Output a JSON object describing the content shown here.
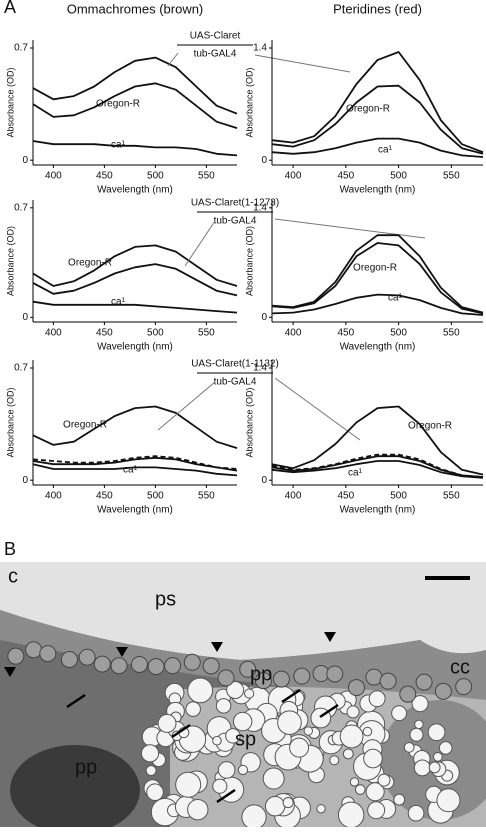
{
  "panel_labels": [
    "A",
    "B"
  ],
  "chart_data": [
    {
      "type": "line",
      "title": "Ommachromes (brown)",
      "xlabel": "Wavelength (nm)",
      "ylabel": "Absorbance (OD)",
      "driver": "tub-GAL4",
      "x": [
        380,
        400,
        420,
        440,
        460,
        480,
        500,
        520,
        540,
        560,
        580
      ],
      "xlim": [
        380,
        580
      ],
      "xticks": [
        400,
        450,
        500,
        550
      ],
      "ylim": [
        -0.03,
        0.75
      ],
      "yticks": [
        0,
        0.7
      ],
      "series": [
        {
          "name": "UAS-Claret",
          "color": "#111111",
          "values": [
            0.45,
            0.38,
            0.4,
            0.46,
            0.55,
            0.62,
            0.64,
            0.58,
            0.46,
            0.34,
            0.29
          ]
        },
        {
          "name": "Oregon-R",
          "color": "#111111",
          "values": [
            0.35,
            0.27,
            0.28,
            0.33,
            0.4,
            0.46,
            0.48,
            0.44,
            0.34,
            0.24,
            0.2
          ]
        },
        {
          "name": "ca¹",
          "color": "#111111",
          "values": [
            0.12,
            0.1,
            0.1,
            0.1,
            0.09,
            0.09,
            0.08,
            0.08,
            0.07,
            0.04,
            0.03
          ]
        }
      ]
    },
    {
      "type": "line",
      "title": "Pteridines (red)",
      "xlabel": "Wavelength (nm)",
      "ylabel": "Absorbance (OD)",
      "x": [
        380,
        400,
        420,
        440,
        460,
        480,
        500,
        520,
        540,
        560,
        580
      ],
      "xlim": [
        380,
        580
      ],
      "xticks": [
        400,
        450,
        500,
        550
      ],
      "ylim": [
        -0.06,
        1.5
      ],
      "yticks": [
        0,
        1.4
      ],
      "series": [
        {
          "color": "#111111",
          "values": [
            0.25,
            0.22,
            0.3,
            0.55,
            0.95,
            1.25,
            1.35,
            1.0,
            0.5,
            0.2,
            0.1
          ]
        },
        {
          "name": "Oregon-R",
          "color": "#111111",
          "values": [
            0.2,
            0.17,
            0.25,
            0.45,
            0.72,
            0.92,
            0.93,
            0.72,
            0.38,
            0.15,
            0.08
          ]
        },
        {
          "name": "ca¹",
          "color": "#111111",
          "values": [
            0.1,
            0.08,
            0.1,
            0.15,
            0.22,
            0.27,
            0.27,
            0.22,
            0.12,
            0.06,
            0.04
          ]
        }
      ]
    },
    {
      "type": "line",
      "xlabel": "Wavelength (nm)",
      "ylabel": "Absorbance (OD)",
      "driver": "tub-GAL4",
      "x": [
        380,
        400,
        420,
        440,
        460,
        480,
        500,
        520,
        540,
        560,
        580
      ],
      "xlim": [
        380,
        580
      ],
      "xticks": [
        400,
        450,
        500,
        550
      ],
      "ylim": [
        -0.03,
        0.75
      ],
      "yticks": [
        0,
        0.7
      ],
      "series": [
        {
          "name": "Oregon-R",
          "color": "#111111",
          "values": [
            0.28,
            0.2,
            0.23,
            0.3,
            0.39,
            0.45,
            0.46,
            0.42,
            0.33,
            0.24,
            0.2
          ]
        },
        {
          "name": "UAS-Claret(1-1273)",
          "color": "#111111",
          "values": [
            0.22,
            0.15,
            0.17,
            0.22,
            0.28,
            0.32,
            0.34,
            0.31,
            0.24,
            0.17,
            0.14
          ]
        },
        {
          "name": "ca¹",
          "color": "#111111",
          "values": [
            0.1,
            0.08,
            0.08,
            0.08,
            0.08,
            0.08,
            0.07,
            0.06,
            0.05,
            0.04,
            0.03
          ]
        }
      ]
    },
    {
      "type": "line",
      "xlabel": "Wavelength (nm)",
      "ylabel": "Absorbance (OD)",
      "x": [
        380,
        400,
        420,
        440,
        460,
        480,
        500,
        520,
        540,
        560,
        580
      ],
      "xlim": [
        380,
        580
      ],
      "xticks": [
        400,
        450,
        500,
        550
      ],
      "ylim": [
        -0.06,
        1.5
      ],
      "yticks": [
        0,
        1.4
      ],
      "series": [
        {
          "color": "#111111",
          "values": [
            0.15,
            0.13,
            0.2,
            0.45,
            0.85,
            1.05,
            1.05,
            0.78,
            0.38,
            0.13,
            0.06
          ]
        },
        {
          "name": "Oregon-R",
          "color": "#111111",
          "values": [
            0.14,
            0.12,
            0.18,
            0.4,
            0.78,
            0.95,
            0.92,
            0.68,
            0.32,
            0.11,
            0.05
          ]
        },
        {
          "name": "ca¹",
          "color": "#111111",
          "values": [
            0.05,
            0.06,
            0.1,
            0.17,
            0.25,
            0.29,
            0.28,
            0.22,
            0.12,
            0.05,
            0.03
          ]
        }
      ]
    },
    {
      "type": "line",
      "xlabel": "Wavelength (nm)",
      "ylabel": "Absorbance (OD)",
      "driver": "tub-GAL4",
      "x": [
        380,
        400,
        420,
        440,
        460,
        480,
        500,
        520,
        540,
        560,
        580
      ],
      "xlim": [
        380,
        580
      ],
      "xticks": [
        400,
        450,
        500,
        550
      ],
      "ylim": [
        -0.03,
        0.75
      ],
      "yticks": [
        0,
        0.7
      ],
      "series": [
        {
          "name": "Oregon-R",
          "color": "#111111",
          "values": [
            0.28,
            0.22,
            0.24,
            0.32,
            0.4,
            0.45,
            0.46,
            0.42,
            0.33,
            0.24,
            0.2
          ]
        },
        {
          "name": "UAS-Claret(1-1132)",
          "color": "#111111",
          "dashed": true,
          "values": [
            0.13,
            0.12,
            0.11,
            0.11,
            0.12,
            0.14,
            0.15,
            0.14,
            0.11,
            0.08,
            0.07
          ]
        },
        {
          "color": "#111111",
          "values": [
            0.12,
            0.1,
            0.1,
            0.1,
            0.11,
            0.13,
            0.14,
            0.13,
            0.1,
            0.08,
            0.06
          ]
        },
        {
          "name": "ca¹",
          "color": "#111111",
          "values": [
            0.1,
            0.07,
            0.07,
            0.07,
            0.07,
            0.08,
            0.08,
            0.07,
            0.06,
            0.04,
            0.03
          ]
        }
      ]
    },
    {
      "type": "line",
      "xlabel": "Wavelength (nm)",
      "ylabel": "Absorbance (OD)",
      "x": [
        380,
        400,
        420,
        440,
        460,
        480,
        500,
        520,
        540,
        560,
        580
      ],
      "xlim": [
        380,
        580
      ],
      "xticks": [
        400,
        450,
        500,
        550
      ],
      "ylim": [
        -0.06,
        1.5
      ],
      "yticks": [
        0,
        1.4
      ],
      "series": [
        {
          "name": "Oregon-R",
          "color": "#111111",
          "values": [
            0.2,
            0.15,
            0.25,
            0.45,
            0.72,
            0.9,
            0.92,
            0.7,
            0.35,
            0.13,
            0.07
          ]
        },
        {
          "color": "#111111",
          "dashed": true,
          "values": [
            0.18,
            0.13,
            0.15,
            0.2,
            0.27,
            0.32,
            0.32,
            0.26,
            0.14,
            0.06,
            0.04
          ]
        },
        {
          "color": "#111111",
          "values": [
            0.16,
            0.12,
            0.14,
            0.19,
            0.25,
            0.3,
            0.3,
            0.24,
            0.13,
            0.06,
            0.04
          ]
        },
        {
          "name": "ca¹",
          "color": "#111111",
          "values": [
            0.13,
            0.1,
            0.12,
            0.15,
            0.2,
            0.24,
            0.24,
            0.19,
            0.1,
            0.05,
            0.03
          ]
        }
      ]
    }
  ],
  "micrograph": {
    "labels": [
      "c",
      "ps",
      "cc",
      "pp",
      "sp",
      "pp"
    ]
  }
}
